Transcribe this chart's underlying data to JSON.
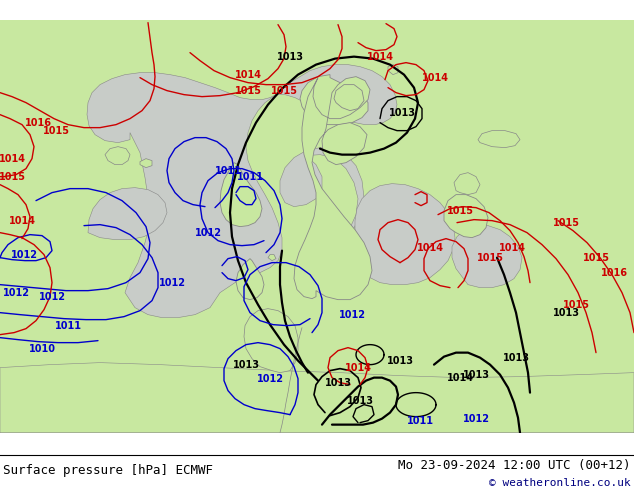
{
  "title_left": "Surface pressure [hPa] ECMWF",
  "title_right": "Mo 23-09-2024 12:00 UTC (00+12)",
  "copyright": "© weatheronline.co.uk",
  "land_color": "#c8e8a0",
  "sea_color": "#c8ccc8",
  "coast_color": "#888888",
  "fig_width": 6.34,
  "fig_height": 4.9,
  "dpi": 100,
  "title_fontsize": 9,
  "copyright_fontsize": 8,
  "black_color": "#000000",
  "blue_color": "#0000cc",
  "red_color": "#cc0000",
  "label_fs": 7,
  "lw_thick": 1.6,
  "lw_thin": 1.0
}
